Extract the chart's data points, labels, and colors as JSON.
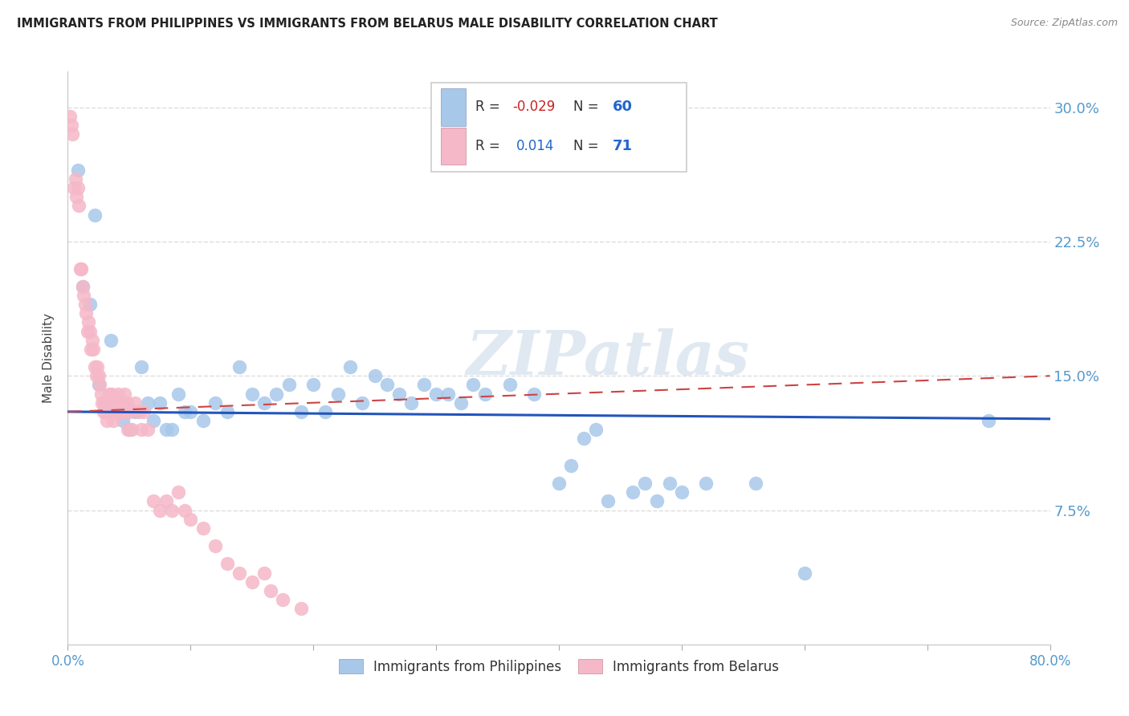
{
  "title": "IMMIGRANTS FROM PHILIPPINES VS IMMIGRANTS FROM BELARUS MALE DISABILITY CORRELATION CHART",
  "source": "Source: ZipAtlas.com",
  "ylabel": "Male Disability",
  "yticks": [
    0.0,
    0.075,
    0.15,
    0.225,
    0.3
  ],
  "ytick_labels": [
    "",
    "7.5%",
    "15.0%",
    "22.5%",
    "30.0%"
  ],
  "xlim": [
    0.0,
    0.8
  ],
  "ylim": [
    0.0,
    0.32
  ],
  "legend_label1": "Immigrants from Philippines",
  "legend_label2": "Immigrants from Belarus",
  "color_philippines": "#a8c8ea",
  "color_belarus": "#f5b8c8",
  "color_philippines_line": "#2255bb",
  "color_belarus_line": "#cc4444",
  "watermark": "ZIPatlas",
  "philippines_x": [
    0.008,
    0.012,
    0.018,
    0.022,
    0.025,
    0.03,
    0.035,
    0.04,
    0.045,
    0.05,
    0.055,
    0.06,
    0.065,
    0.07,
    0.075,
    0.08,
    0.085,
    0.09,
    0.095,
    0.1,
    0.11,
    0.12,
    0.13,
    0.14,
    0.15,
    0.16,
    0.17,
    0.18,
    0.19,
    0.2,
    0.21,
    0.22,
    0.23,
    0.24,
    0.25,
    0.26,
    0.27,
    0.28,
    0.29,
    0.3,
    0.31,
    0.32,
    0.33,
    0.34,
    0.36,
    0.38,
    0.4,
    0.41,
    0.42,
    0.43,
    0.44,
    0.46,
    0.47,
    0.48,
    0.49,
    0.5,
    0.52,
    0.56,
    0.6,
    0.75
  ],
  "philippines_y": [
    0.265,
    0.2,
    0.19,
    0.24,
    0.145,
    0.135,
    0.17,
    0.135,
    0.125,
    0.12,
    0.13,
    0.155,
    0.135,
    0.125,
    0.135,
    0.12,
    0.12,
    0.14,
    0.13,
    0.13,
    0.125,
    0.135,
    0.13,
    0.155,
    0.14,
    0.135,
    0.14,
    0.145,
    0.13,
    0.145,
    0.13,
    0.14,
    0.155,
    0.135,
    0.15,
    0.145,
    0.14,
    0.135,
    0.145,
    0.14,
    0.14,
    0.135,
    0.145,
    0.14,
    0.145,
    0.14,
    0.09,
    0.1,
    0.115,
    0.12,
    0.08,
    0.085,
    0.09,
    0.08,
    0.09,
    0.085,
    0.09,
    0.09,
    0.04,
    0.125
  ],
  "belarus_x": [
    0.002,
    0.003,
    0.004,
    0.005,
    0.006,
    0.007,
    0.008,
    0.009,
    0.01,
    0.011,
    0.012,
    0.013,
    0.014,
    0.015,
    0.016,
    0.017,
    0.018,
    0.019,
    0.02,
    0.021,
    0.022,
    0.023,
    0.024,
    0.025,
    0.026,
    0.027,
    0.028,
    0.029,
    0.03,
    0.031,
    0.032,
    0.033,
    0.034,
    0.035,
    0.036,
    0.037,
    0.038,
    0.039,
    0.04,
    0.041,
    0.042,
    0.043,
    0.044,
    0.045,
    0.046,
    0.047,
    0.048,
    0.049,
    0.05,
    0.052,
    0.055,
    0.058,
    0.06,
    0.062,
    0.065,
    0.07,
    0.075,
    0.08,
    0.085,
    0.09,
    0.095,
    0.1,
    0.11,
    0.12,
    0.13,
    0.14,
    0.15,
    0.16,
    0.165,
    0.175,
    0.19
  ],
  "belarus_y": [
    0.295,
    0.29,
    0.285,
    0.255,
    0.26,
    0.25,
    0.255,
    0.245,
    0.21,
    0.21,
    0.2,
    0.195,
    0.19,
    0.185,
    0.175,
    0.18,
    0.175,
    0.165,
    0.17,
    0.165,
    0.155,
    0.15,
    0.155,
    0.15,
    0.145,
    0.14,
    0.135,
    0.13,
    0.135,
    0.13,
    0.125,
    0.135,
    0.14,
    0.13,
    0.14,
    0.125,
    0.13,
    0.135,
    0.13,
    0.14,
    0.135,
    0.13,
    0.13,
    0.135,
    0.14,
    0.13,
    0.135,
    0.12,
    0.13,
    0.12,
    0.135,
    0.13,
    0.12,
    0.13,
    0.12,
    0.08,
    0.075,
    0.08,
    0.075,
    0.085,
    0.075,
    0.07,
    0.065,
    0.055,
    0.045,
    0.04,
    0.035,
    0.04,
    0.03,
    0.025,
    0.02
  ],
  "grid_color": "#dddddd",
  "background_color": "#ffffff",
  "tick_color": "#5599cc",
  "title_fontsize": 10.5,
  "source_fontsize": 9
}
